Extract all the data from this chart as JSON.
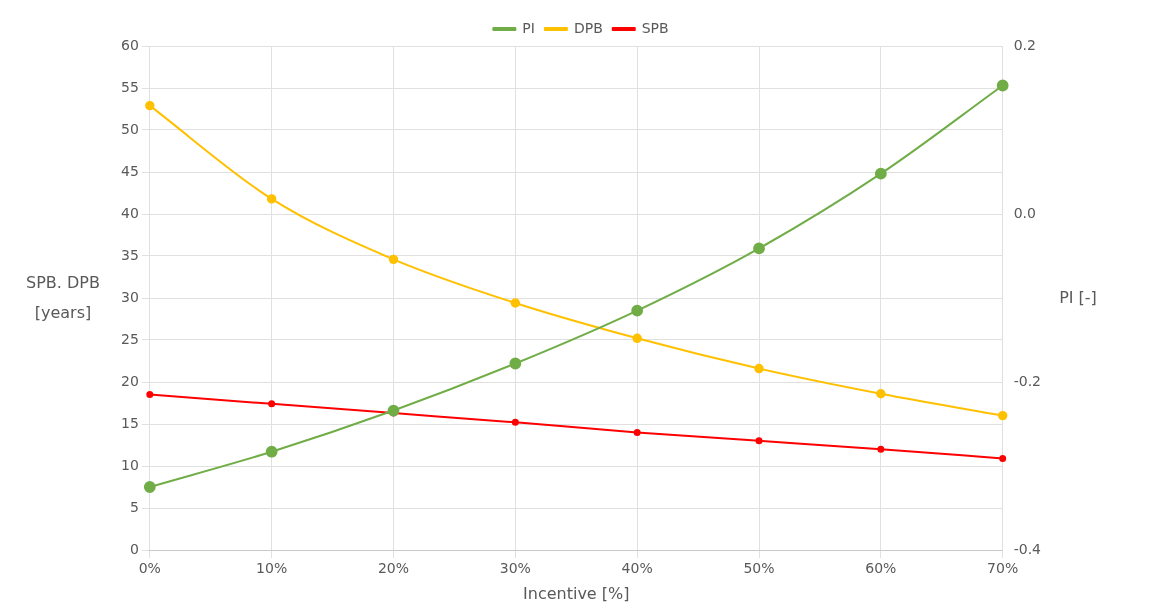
{
  "chart_data": {
    "type": "line",
    "xlabel": "Incentive [%]",
    "ylabel": "SPB. DPB [years]",
    "y2label": "PI [-]",
    "categories": [
      "0%",
      "10%",
      "20%",
      "30%",
      "40%",
      "50%",
      "60%",
      "70%"
    ],
    "series": [
      {
        "name": "SPB",
        "color": "#ff0000",
        "values": [
          18.5,
          17.4,
          16.3,
          15.2,
          14.0,
          13.0,
          12.0,
          10.9
        ]
      },
      {
        "name": "DPB",
        "color": "#ffc000",
        "values": [
          52.9,
          41.8,
          34.6,
          29.4,
          25.2,
          21.6,
          18.6,
          16.0
        ]
      },
      {
        "name": "PI",
        "color": "#70ad47",
        "axis": "y2",
        "values": [
          -0.325,
          -0.283,
          -0.234,
          -0.178,
          -0.115,
          -0.041,
          0.048,
          0.153
        ]
      }
    ],
    "ylim": [
      0,
      60
    ],
    "yticks": [
      0,
      5,
      10,
      15,
      20,
      25,
      30,
      35,
      40,
      45,
      50,
      55,
      60
    ],
    "y2lim": [
      -0.4,
      0.2
    ],
    "y2ticks": [
      {
        "value": -0.4,
        "label": "-0.4"
      },
      {
        "value": -0.2,
        "label": "-0.2"
      },
      {
        "value": 0,
        "label": "0.0"
      },
      {
        "value": 0.2,
        "label": "0.2"
      }
    ],
    "grid": true,
    "legend": "top",
    "marker": "circle",
    "line_style": "solid"
  }
}
